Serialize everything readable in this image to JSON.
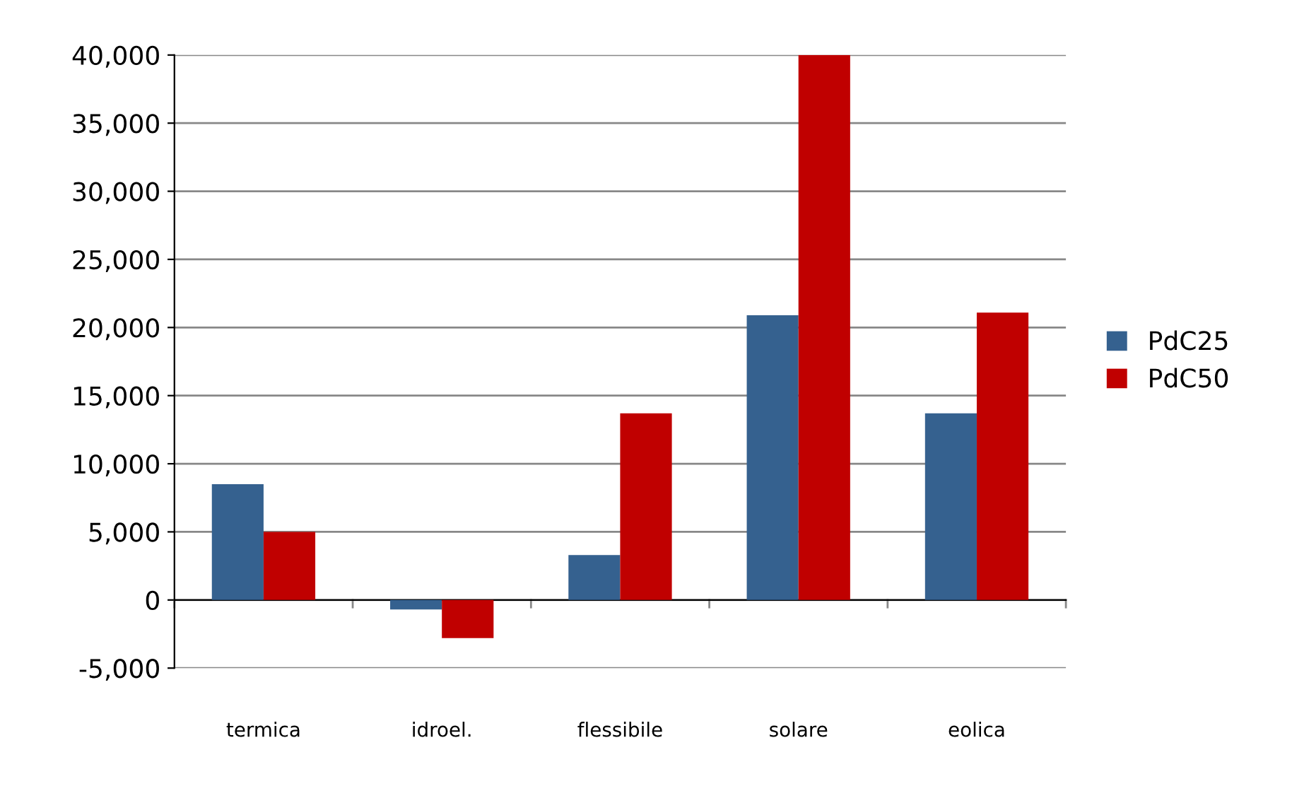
{
  "chart_data": {
    "type": "bar",
    "categories": [
      "termica",
      "idroel.",
      "flessibile",
      "solare",
      "eolica"
    ],
    "series": [
      {
        "name": "PdC25",
        "color": "#35618f",
        "values": [
          8500,
          -700,
          3300,
          20900,
          13700
        ]
      },
      {
        "name": "PdC50",
        "color": "#c00000",
        "values": [
          5000,
          -2800,
          13700,
          40000,
          21100
        ]
      }
    ],
    "ylim": [
      -5000,
      40000
    ],
    "yticks": [
      {
        "value": -5000,
        "label": "-5,000"
      },
      0,
      {
        "value": 5000,
        "label": "5,000"
      },
      {
        "value": 10000,
        "label": "10,000"
      },
      {
        "value": 15000,
        "label": "15,000"
      },
      {
        "value": 20000,
        "label": "20,000"
      },
      {
        "value": 25000,
        "label": "25,000"
      },
      {
        "value": 30000,
        "label": "30,000"
      },
      {
        "value": 35000,
        "label": "35,000"
      },
      {
        "value": 40000,
        "label": "40,000"
      }
    ],
    "grid": "y",
    "legend": "right"
  }
}
